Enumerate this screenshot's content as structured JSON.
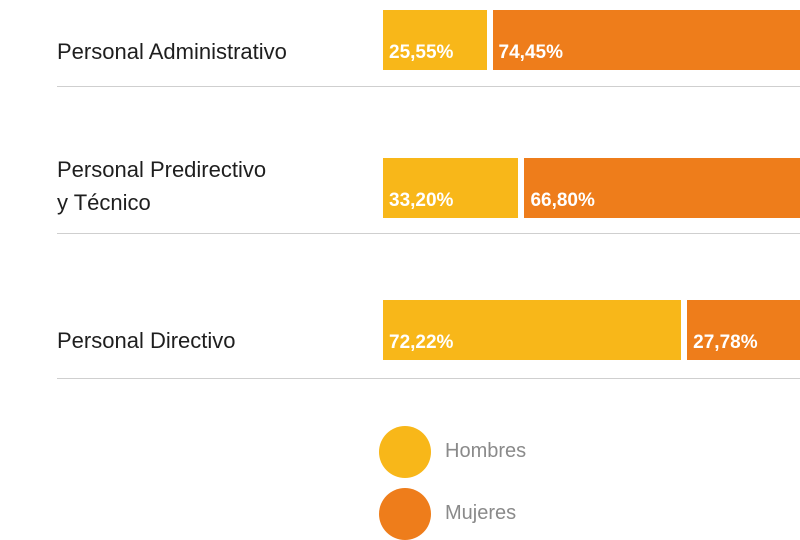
{
  "chart_data": {
    "type": "stacked-bar-horizontal",
    "categories": [
      "Personal Administrativo",
      "Personal Predirectivo\ny Técnico",
      "Personal Directivo"
    ],
    "xlim": [
      0,
      100
    ],
    "series": [
      {
        "name": "Hombres",
        "color": "#f8b719",
        "values": [
          25.55,
          33.2,
          72.22
        ],
        "value_labels": [
          "25,55%",
          "33,20%",
          "72,22%"
        ]
      },
      {
        "name": "Mujeres",
        "color": "#ee7d1b",
        "values": [
          74.45,
          66.8,
          27.78
        ],
        "value_labels": [
          "74,45%",
          "66,80%",
          "27,78%"
        ]
      }
    ]
  }
}
